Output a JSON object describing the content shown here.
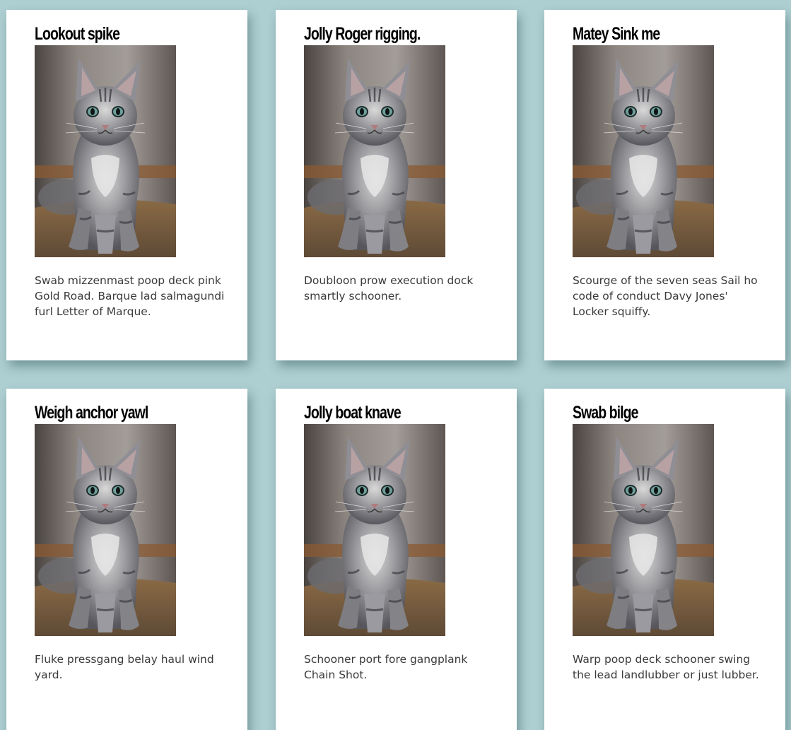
{
  "cards": [
    {
      "title": "Lookout spike",
      "image_alt": "gray tabby kitten",
      "text": "Swab mizzenmast poop deck pink Gold Road. Barque lad salmagundi furl Letter of Marque."
    },
    {
      "title": "Jolly Roger rigging.",
      "image_alt": "gray tabby kitten",
      "text": "Doubloon prow execution dock smartly schooner."
    },
    {
      "title": "Matey Sink me",
      "image_alt": "gray tabby kitten",
      "text": "Scourge of the seven seas Sail ho code of conduct Davy Jones' Locker squiffy."
    },
    {
      "title": "Weigh anchor yawl",
      "image_alt": "gray tabby kitten",
      "text": "Fluke pressgang belay haul wind yard."
    },
    {
      "title": "Jolly boat knave",
      "image_alt": "gray tabby kitten",
      "text": "Schooner port fore gangplank Chain Shot."
    },
    {
      "title": "Swab bilge",
      "image_alt": "gray tabby kitten",
      "text": "Warp poop deck schooner swing the lead landlubber or just lubber."
    }
  ],
  "colors": {
    "background": "#aecfd2",
    "card": "#ffffff",
    "title": "#000000",
    "text": "#3a3a3a"
  }
}
